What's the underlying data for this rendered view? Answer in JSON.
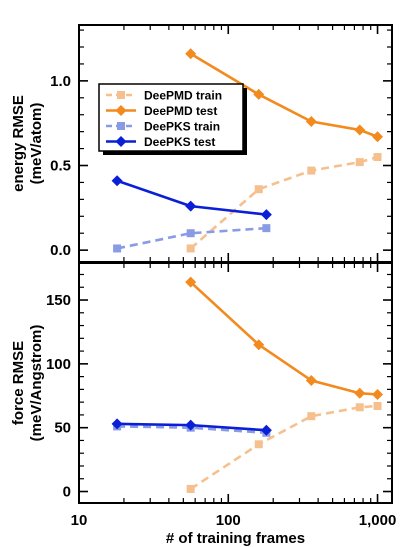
{
  "chart_data": {
    "type": "line",
    "x": [
      18,
      56,
      160,
      360,
      760,
      1000
    ],
    "xlabel": "# of training frames",
    "xscale": "log",
    "xlim": [
      10,
      1250
    ],
    "xticks": [
      {
        "value": 10,
        "label": "10"
      },
      {
        "value": 100,
        "label": "100"
      },
      {
        "value": 1000,
        "label": "1,000"
      }
    ],
    "panels": [
      {
        "id": "energy",
        "ylabel_line1": "energy RMSE",
        "ylabel_line2": "(meV/atom)",
        "ylim": [
          -0.07,
          1.33
        ],
        "yticks": [
          {
            "value": 0.0,
            "label": "0.0"
          },
          {
            "value": 0.5,
            "label": "0.5"
          },
          {
            "value": 1.0,
            "label": "1.0"
          }
        ],
        "legend_position": "upper-left",
        "series": [
          {
            "name": "DeePMD train",
            "color": "#f5c08e",
            "dashed": true,
            "marker": "square",
            "points": [
              [
                56,
                0.01
              ],
              [
                160,
                0.36
              ],
              [
                360,
                0.47
              ],
              [
                760,
                0.52
              ],
              [
                1000,
                0.55
              ]
            ]
          },
          {
            "name": "DeePMD test",
            "color": "#f28a1e",
            "dashed": false,
            "marker": "diamond",
            "points": [
              [
                56,
                1.16
              ],
              [
                160,
                0.92
              ],
              [
                360,
                0.76
              ],
              [
                760,
                0.71
              ],
              [
                1000,
                0.67
              ]
            ]
          },
          {
            "name": "DeePKS train",
            "color": "#8a9be6",
            "dashed": true,
            "marker": "square",
            "points": [
              [
                18,
                0.01
              ],
              [
                56,
                0.1
              ],
              [
                180,
                0.13
              ]
            ]
          },
          {
            "name": "DeePKS test",
            "color": "#0a1fd6",
            "dashed": false,
            "marker": "diamond",
            "points": [
              [
                18,
                0.41
              ],
              [
                56,
                0.26
              ],
              [
                180,
                0.21
              ]
            ]
          }
        ]
      },
      {
        "id": "force",
        "ylabel_line1": "force RMSE",
        "ylabel_line2": "(meV/Angstrom)",
        "ylim": [
          -9,
          179
        ],
        "yticks": [
          {
            "value": 0,
            "label": "0"
          },
          {
            "value": 50,
            "label": "50"
          },
          {
            "value": 100,
            "label": "100"
          },
          {
            "value": 150,
            "label": "150"
          }
        ],
        "series": [
          {
            "name": "DeePMD train",
            "color": "#f5c08e",
            "dashed": true,
            "marker": "square",
            "points": [
              [
                56,
                2
              ],
              [
                160,
                37
              ],
              [
                360,
                59
              ],
              [
                760,
                66
              ],
              [
                1000,
                67
              ]
            ]
          },
          {
            "name": "DeePMD test",
            "color": "#f28a1e",
            "dashed": false,
            "marker": "diamond",
            "points": [
              [
                56,
                164
              ],
              [
                160,
                115
              ],
              [
                360,
                87
              ],
              [
                760,
                77
              ],
              [
                1000,
                76
              ]
            ]
          },
          {
            "name": "DeePKS train",
            "color": "#8a9be6",
            "dashed": true,
            "marker": "square",
            "points": [
              [
                18,
                51
              ],
              [
                56,
                50
              ],
              [
                180,
                46
              ]
            ]
          },
          {
            "name": "DeePKS test",
            "color": "#0a1fd6",
            "dashed": false,
            "marker": "diamond",
            "points": [
              [
                18,
                53
              ],
              [
                56,
                52
              ],
              [
                180,
                48
              ]
            ]
          }
        ]
      }
    ]
  }
}
